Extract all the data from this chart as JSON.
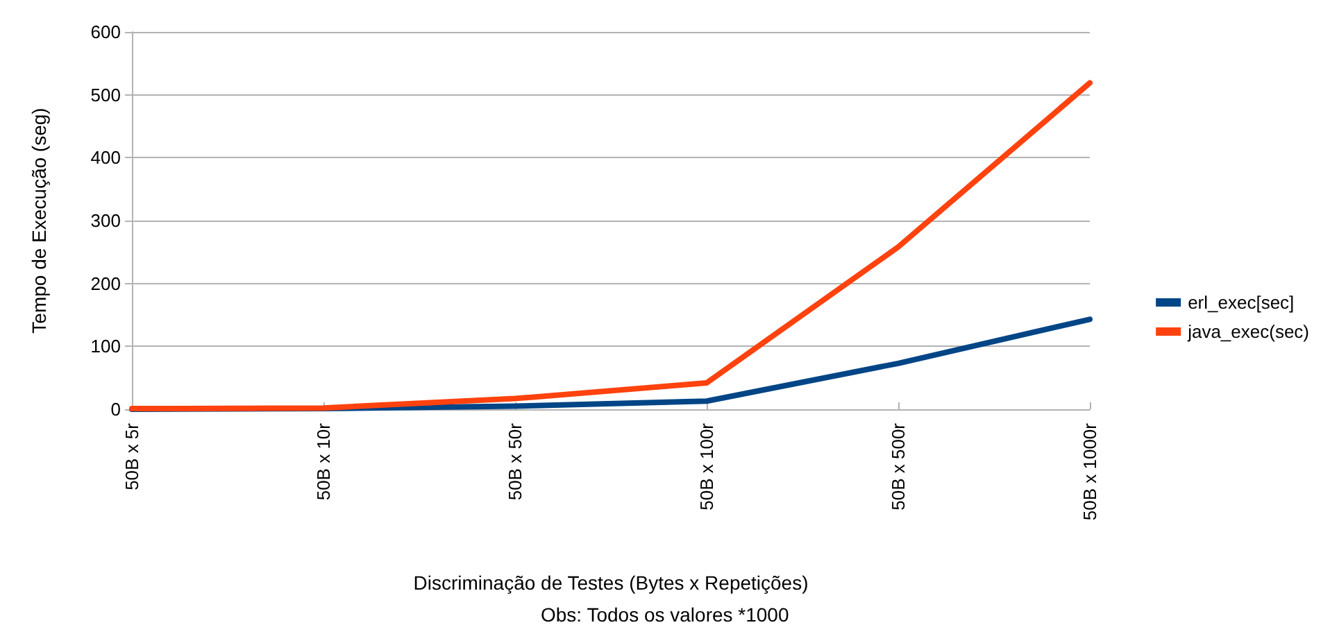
{
  "chart_data": {
    "type": "line",
    "categories": [
      "50B x 5r",
      "50B x 10r",
      "50B x 50r",
      "50B x 100r",
      "50B x 500r",
      "50B x 1000r"
    ],
    "series": [
      {
        "name": "erl_exec[sec]",
        "color": "#004586",
        "values": [
          0,
          1,
          5,
          13,
          73,
          143
        ]
      },
      {
        "name": "java_exec(sec)",
        "color": "#ff420e",
        "values": [
          1,
          2,
          17,
          42,
          258,
          519
        ]
      }
    ],
    "ylim": [
      0,
      600
    ],
    "yticks": [
      0,
      100,
      200,
      300,
      400,
      500,
      600
    ],
    "xlabel": "Discriminação de Testes (Bytes x Repetições)",
    "ylabel": "Tempo de Execução (seg)",
    "annotations": [
      "Obs: Todos os valores *1000"
    ],
    "grid": "y",
    "legend": "right",
    "marker": "none",
    "line_style": "solid"
  }
}
